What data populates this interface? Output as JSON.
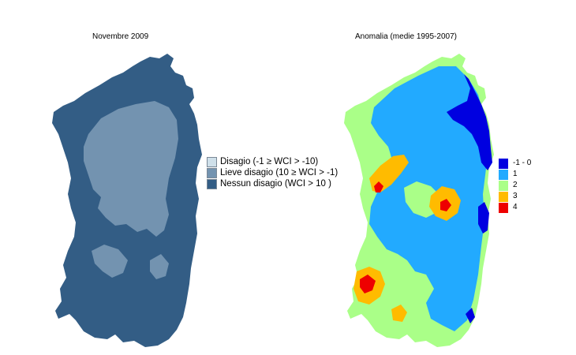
{
  "left_map": {
    "title": "Novembre 2009",
    "legend": [
      {
        "label": "Disagio (-1 ≥ WCI > -10)",
        "color": "#cfe0ea"
      },
      {
        "label": "Lieve disagio (10 ≥ WCI > -1)",
        "color": "#7393b0"
      },
      {
        "label": "Nessun disagio (WCI > 10 )",
        "color": "#335d85"
      }
    ]
  },
  "right_map": {
    "title": "Anomalia (medie 1995-2007)",
    "legend": [
      {
        "label": "-1 - 0",
        "color": "#0000e0"
      },
      {
        "label": "1",
        "color": "#22aaff"
      },
      {
        "label": "2",
        "color": "#aaff88"
      },
      {
        "label": "3",
        "color": "#ffbb00"
      },
      {
        "label": "4",
        "color": "#ee0000"
      }
    ]
  }
}
